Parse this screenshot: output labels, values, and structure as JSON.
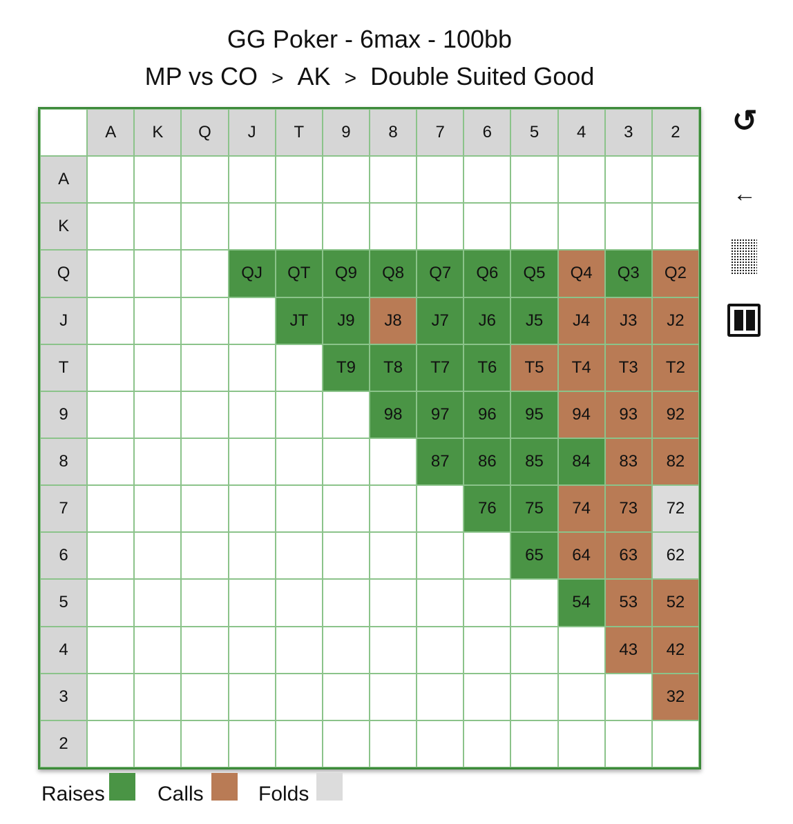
{
  "title": {
    "line1": "GG Poker - 6max - 100bb",
    "breadcrumb": [
      "MP vs CO",
      "AK",
      "Double Suited Good"
    ],
    "separator": ">"
  },
  "colors": {
    "raise": "#4a9445",
    "call": "#b97b55",
    "fold": "#dcdcdc",
    "border": "#3d8a3a"
  },
  "grid": {
    "columns": [
      "A",
      "K",
      "Q",
      "J",
      "T",
      "9",
      "8",
      "7",
      "6",
      "5",
      "4",
      "3",
      "2"
    ],
    "rows": [
      "A",
      "K",
      "Q",
      "J",
      "T",
      "9",
      "8",
      "7",
      "6",
      "5",
      "4",
      "3",
      "2"
    ],
    "cells": [
      {
        "label": "QJ",
        "action": "raise",
        "row": 2,
        "col": 3
      },
      {
        "label": "QT",
        "action": "raise",
        "row": 2,
        "col": 4
      },
      {
        "label": "Q9",
        "action": "raise",
        "row": 2,
        "col": 5
      },
      {
        "label": "Q8",
        "action": "raise",
        "row": 2,
        "col": 6
      },
      {
        "label": "Q7",
        "action": "raise",
        "row": 2,
        "col": 7
      },
      {
        "label": "Q6",
        "action": "raise",
        "row": 2,
        "col": 8
      },
      {
        "label": "Q5",
        "action": "raise",
        "row": 2,
        "col": 9
      },
      {
        "label": "Q4",
        "action": "call",
        "row": 2,
        "col": 10
      },
      {
        "label": "Q3",
        "action": "raise",
        "row": 2,
        "col": 11
      },
      {
        "label": "Q2",
        "action": "call",
        "row": 2,
        "col": 12
      },
      {
        "label": "JT",
        "action": "raise",
        "row": 3,
        "col": 4
      },
      {
        "label": "J9",
        "action": "raise",
        "row": 3,
        "col": 5
      },
      {
        "label": "J8",
        "action": "call",
        "row": 3,
        "col": 6
      },
      {
        "label": "J7",
        "action": "raise",
        "row": 3,
        "col": 7
      },
      {
        "label": "J6",
        "action": "raise",
        "row": 3,
        "col": 8
      },
      {
        "label": "J5",
        "action": "raise",
        "row": 3,
        "col": 9
      },
      {
        "label": "J4",
        "action": "call",
        "row": 3,
        "col": 10
      },
      {
        "label": "J3",
        "action": "call",
        "row": 3,
        "col": 11
      },
      {
        "label": "J2",
        "action": "call",
        "row": 3,
        "col": 12
      },
      {
        "label": "T9",
        "action": "raise",
        "row": 4,
        "col": 5
      },
      {
        "label": "T8",
        "action": "raise",
        "row": 4,
        "col": 6
      },
      {
        "label": "T7",
        "action": "raise",
        "row": 4,
        "col": 7
      },
      {
        "label": "T6",
        "action": "raise",
        "row": 4,
        "col": 8
      },
      {
        "label": "T5",
        "action": "call",
        "row": 4,
        "col": 9
      },
      {
        "label": "T4",
        "action": "call",
        "row": 4,
        "col": 10
      },
      {
        "label": "T3",
        "action": "call",
        "row": 4,
        "col": 11
      },
      {
        "label": "T2",
        "action": "call",
        "row": 4,
        "col": 12
      },
      {
        "label": "98",
        "action": "raise",
        "row": 5,
        "col": 6
      },
      {
        "label": "97",
        "action": "raise",
        "row": 5,
        "col": 7
      },
      {
        "label": "96",
        "action": "raise",
        "row": 5,
        "col": 8
      },
      {
        "label": "95",
        "action": "raise",
        "row": 5,
        "col": 9
      },
      {
        "label": "94",
        "action": "call",
        "row": 5,
        "col": 10
      },
      {
        "label": "93",
        "action": "call",
        "row": 5,
        "col": 11
      },
      {
        "label": "92",
        "action": "call",
        "row": 5,
        "col": 12
      },
      {
        "label": "87",
        "action": "raise",
        "row": 6,
        "col": 7
      },
      {
        "label": "86",
        "action": "raise",
        "row": 6,
        "col": 8
      },
      {
        "label": "85",
        "action": "raise",
        "row": 6,
        "col": 9
      },
      {
        "label": "84",
        "action": "raise",
        "row": 6,
        "col": 10
      },
      {
        "label": "83",
        "action": "call",
        "row": 6,
        "col": 11
      },
      {
        "label": "82",
        "action": "call",
        "row": 6,
        "col": 12
      },
      {
        "label": "76",
        "action": "raise",
        "row": 7,
        "col": 8
      },
      {
        "label": "75",
        "action": "raise",
        "row": 7,
        "col": 9
      },
      {
        "label": "74",
        "action": "call",
        "row": 7,
        "col": 10
      },
      {
        "label": "73",
        "action": "call",
        "row": 7,
        "col": 11
      },
      {
        "label": "72",
        "action": "fold",
        "row": 7,
        "col": 12
      },
      {
        "label": "65",
        "action": "raise",
        "row": 8,
        "col": 9
      },
      {
        "label": "64",
        "action": "call",
        "row": 8,
        "col": 10
      },
      {
        "label": "63",
        "action": "call",
        "row": 8,
        "col": 11
      },
      {
        "label": "62",
        "action": "fold",
        "row": 8,
        "col": 12
      },
      {
        "label": "54",
        "action": "raise",
        "row": 9,
        "col": 10
      },
      {
        "label": "53",
        "action": "call",
        "row": 9,
        "col": 11
      },
      {
        "label": "52",
        "action": "call",
        "row": 9,
        "col": 12
      },
      {
        "label": "43",
        "action": "call",
        "row": 10,
        "col": 11
      },
      {
        "label": "42",
        "action": "call",
        "row": 10,
        "col": 12
      },
      {
        "label": "32",
        "action": "call",
        "row": 11,
        "col": 12
      }
    ]
  },
  "legend": {
    "raises_label": "Raises",
    "calls_label": "Calls",
    "folds_label": "Folds"
  },
  "icons": {
    "refresh": "refresh-icon",
    "back": "back-arrow-icon",
    "pattern": "pattern-toggle-icon",
    "pause": "pause-icon"
  }
}
